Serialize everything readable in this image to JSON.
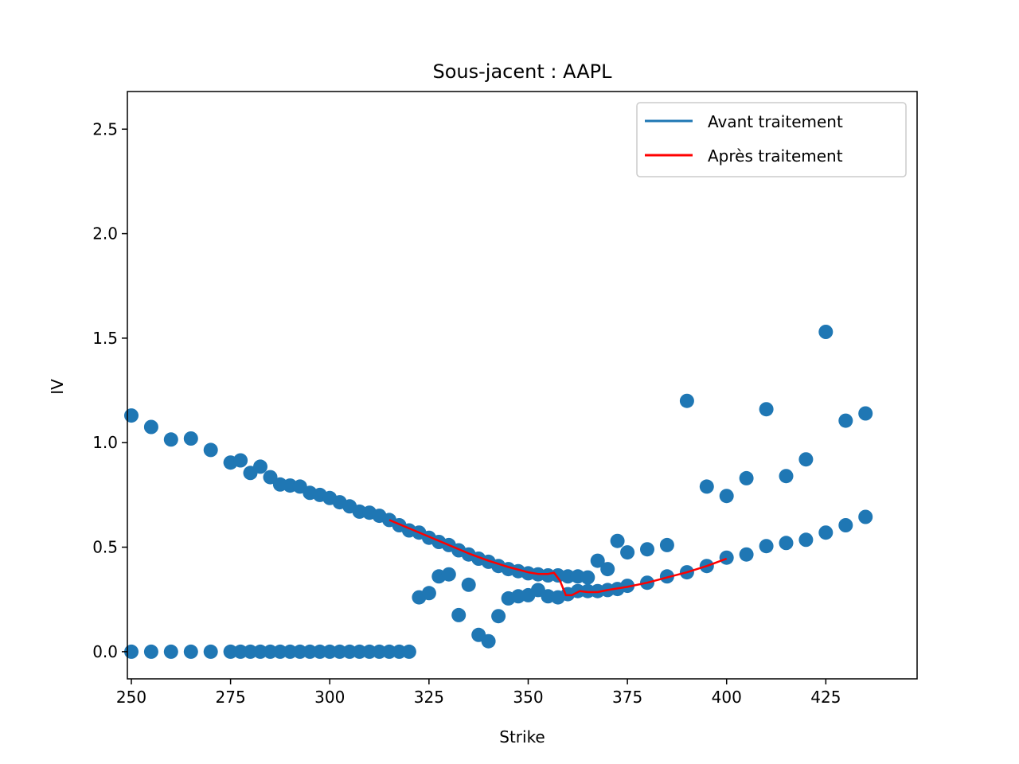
{
  "chart_data": {
    "type": "scatter",
    "title": "Sous-jacent : AAPL",
    "xlabel": "Strike",
    "ylabel": "IV",
    "xlim": [
      249,
      448
    ],
    "ylim": [
      -0.13,
      2.68
    ],
    "xticks": [
      250,
      275,
      300,
      325,
      350,
      375,
      400,
      425
    ],
    "yticks": [
      0.0,
      0.5,
      1.0,
      1.5,
      2.0,
      2.5
    ],
    "xtick_labels": [
      "250",
      "275",
      "300",
      "325",
      "350",
      "375",
      "400",
      "425"
    ],
    "ytick_labels": [
      "0.0",
      "0.5",
      "1.0",
      "1.5",
      "2.0",
      "2.5"
    ],
    "grid": false,
    "legend_position": "top-right",
    "colors": {
      "points": "#1f77b4",
      "avant": "#1f77b4",
      "apres": "#ff0000"
    },
    "legend": [
      {
        "label": "Avant traitement",
        "color": "#1f77b4"
      },
      {
        "label": "Après traitement",
        "color": "#ff0000"
      }
    ],
    "points": [
      [
        250,
        1.13
      ],
      [
        255,
        1.075
      ],
      [
        260,
        1.015
      ],
      [
        265,
        1.02
      ],
      [
        270,
        0.965
      ],
      [
        275,
        0.905
      ],
      [
        277.5,
        0.915
      ],
      [
        280,
        0.855
      ],
      [
        282.5,
        0.885
      ],
      [
        285,
        0.835
      ],
      [
        287.5,
        0.8
      ],
      [
        290,
        0.795
      ],
      [
        292.5,
        0.79
      ],
      [
        295,
        0.76
      ],
      [
        297.5,
        0.75
      ],
      [
        300,
        0.735
      ],
      [
        302.5,
        0.715
      ],
      [
        305,
        0.695
      ],
      [
        307.5,
        0.67
      ],
      [
        310,
        0.665
      ],
      [
        312.5,
        0.65
      ],
      [
        315,
        0.63
      ],
      [
        317.5,
        0.605
      ],
      [
        320,
        0.58
      ],
      [
        322.5,
        0.57
      ],
      [
        325,
        0.545
      ],
      [
        327.5,
        0.525
      ],
      [
        330,
        0.51
      ],
      [
        332.5,
        0.485
      ],
      [
        335,
        0.465
      ],
      [
        337.5,
        0.445
      ],
      [
        340,
        0.43
      ],
      [
        342.5,
        0.41
      ],
      [
        345,
        0.395
      ],
      [
        347.5,
        0.385
      ],
      [
        350,
        0.375
      ],
      [
        352.5,
        0.37
      ],
      [
        355,
        0.365
      ],
      [
        357.5,
        0.365
      ],
      [
        360,
        0.36
      ],
      [
        362.5,
        0.36
      ],
      [
        365,
        0.355
      ],
      [
        250,
        0.0
      ],
      [
        255,
        0.0
      ],
      [
        260,
        0.0
      ],
      [
        265,
        0.0
      ],
      [
        270,
        0.0
      ],
      [
        275,
        0.0
      ],
      [
        277.5,
        0.0
      ],
      [
        280,
        0.0
      ],
      [
        282.5,
        0.0
      ],
      [
        285,
        0.0
      ],
      [
        287.5,
        0.0
      ],
      [
        290,
        0.0
      ],
      [
        292.5,
        0.0
      ],
      [
        295,
        0.0
      ],
      [
        297.5,
        0.0
      ],
      [
        300,
        0.0
      ],
      [
        302.5,
        0.0
      ],
      [
        305,
        0.0
      ],
      [
        307.5,
        0.0
      ],
      [
        310,
        0.0
      ],
      [
        312.5,
        0.0
      ],
      [
        315,
        0.0
      ],
      [
        317.5,
        0.0
      ],
      [
        320,
        0.0
      ],
      [
        322.5,
        0.26
      ],
      [
        325,
        0.28
      ],
      [
        327.5,
        0.36
      ],
      [
        330,
        0.37
      ],
      [
        332.5,
        0.175
      ],
      [
        335,
        0.32
      ],
      [
        337.5,
        0.08
      ],
      [
        340,
        0.05
      ],
      [
        342.5,
        0.17
      ],
      [
        345,
        0.255
      ],
      [
        347.5,
        0.265
      ],
      [
        350,
        0.27
      ],
      [
        352.5,
        0.295
      ],
      [
        355,
        0.265
      ],
      [
        357.5,
        0.26
      ],
      [
        360,
        0.275
      ],
      [
        362.5,
        0.29
      ],
      [
        365,
        0.29
      ],
      [
        367.5,
        0.29
      ],
      [
        370,
        0.295
      ],
      [
        372.5,
        0.3
      ],
      [
        375,
        0.315
      ],
      [
        380,
        0.33
      ],
      [
        385,
        0.36
      ],
      [
        390,
        0.38
      ],
      [
        395,
        0.41
      ],
      [
        400,
        0.45
      ],
      [
        405,
        0.465
      ],
      [
        410,
        0.505
      ],
      [
        415,
        0.52
      ],
      [
        420,
        0.535
      ],
      [
        425,
        0.57
      ],
      [
        430,
        0.605
      ],
      [
        435,
        0.645
      ],
      [
        367.5,
        0.435
      ],
      [
        370,
        0.395
      ],
      [
        372.5,
        0.53
      ],
      [
        375,
        0.475
      ],
      [
        380,
        0.49
      ],
      [
        385,
        0.51
      ],
      [
        390,
        1.2
      ],
      [
        395,
        0.79
      ],
      [
        400,
        0.745
      ],
      [
        405,
        0.83
      ],
      [
        410,
        1.16
      ],
      [
        415,
        0.84
      ],
      [
        420,
        0.92
      ],
      [
        425,
        1.53
      ],
      [
        430,
        1.105
      ],
      [
        435,
        1.14
      ]
    ],
    "series": [
      {
        "name": "Après traitement",
        "x": [
          315,
          320,
          325,
          330,
          335,
          340,
          345,
          350,
          352.5,
          355,
          356.5,
          358,
          359.5,
          361,
          363,
          365,
          367.5,
          370,
          375,
          380,
          385,
          390,
          395,
          400
        ],
        "y": [
          0.63,
          0.59,
          0.55,
          0.51,
          0.47,
          0.435,
          0.405,
          0.38,
          0.372,
          0.372,
          0.378,
          0.34,
          0.27,
          0.27,
          0.29,
          0.285,
          0.285,
          0.295,
          0.31,
          0.33,
          0.355,
          0.38,
          0.41,
          0.445
        ]
      }
    ]
  }
}
